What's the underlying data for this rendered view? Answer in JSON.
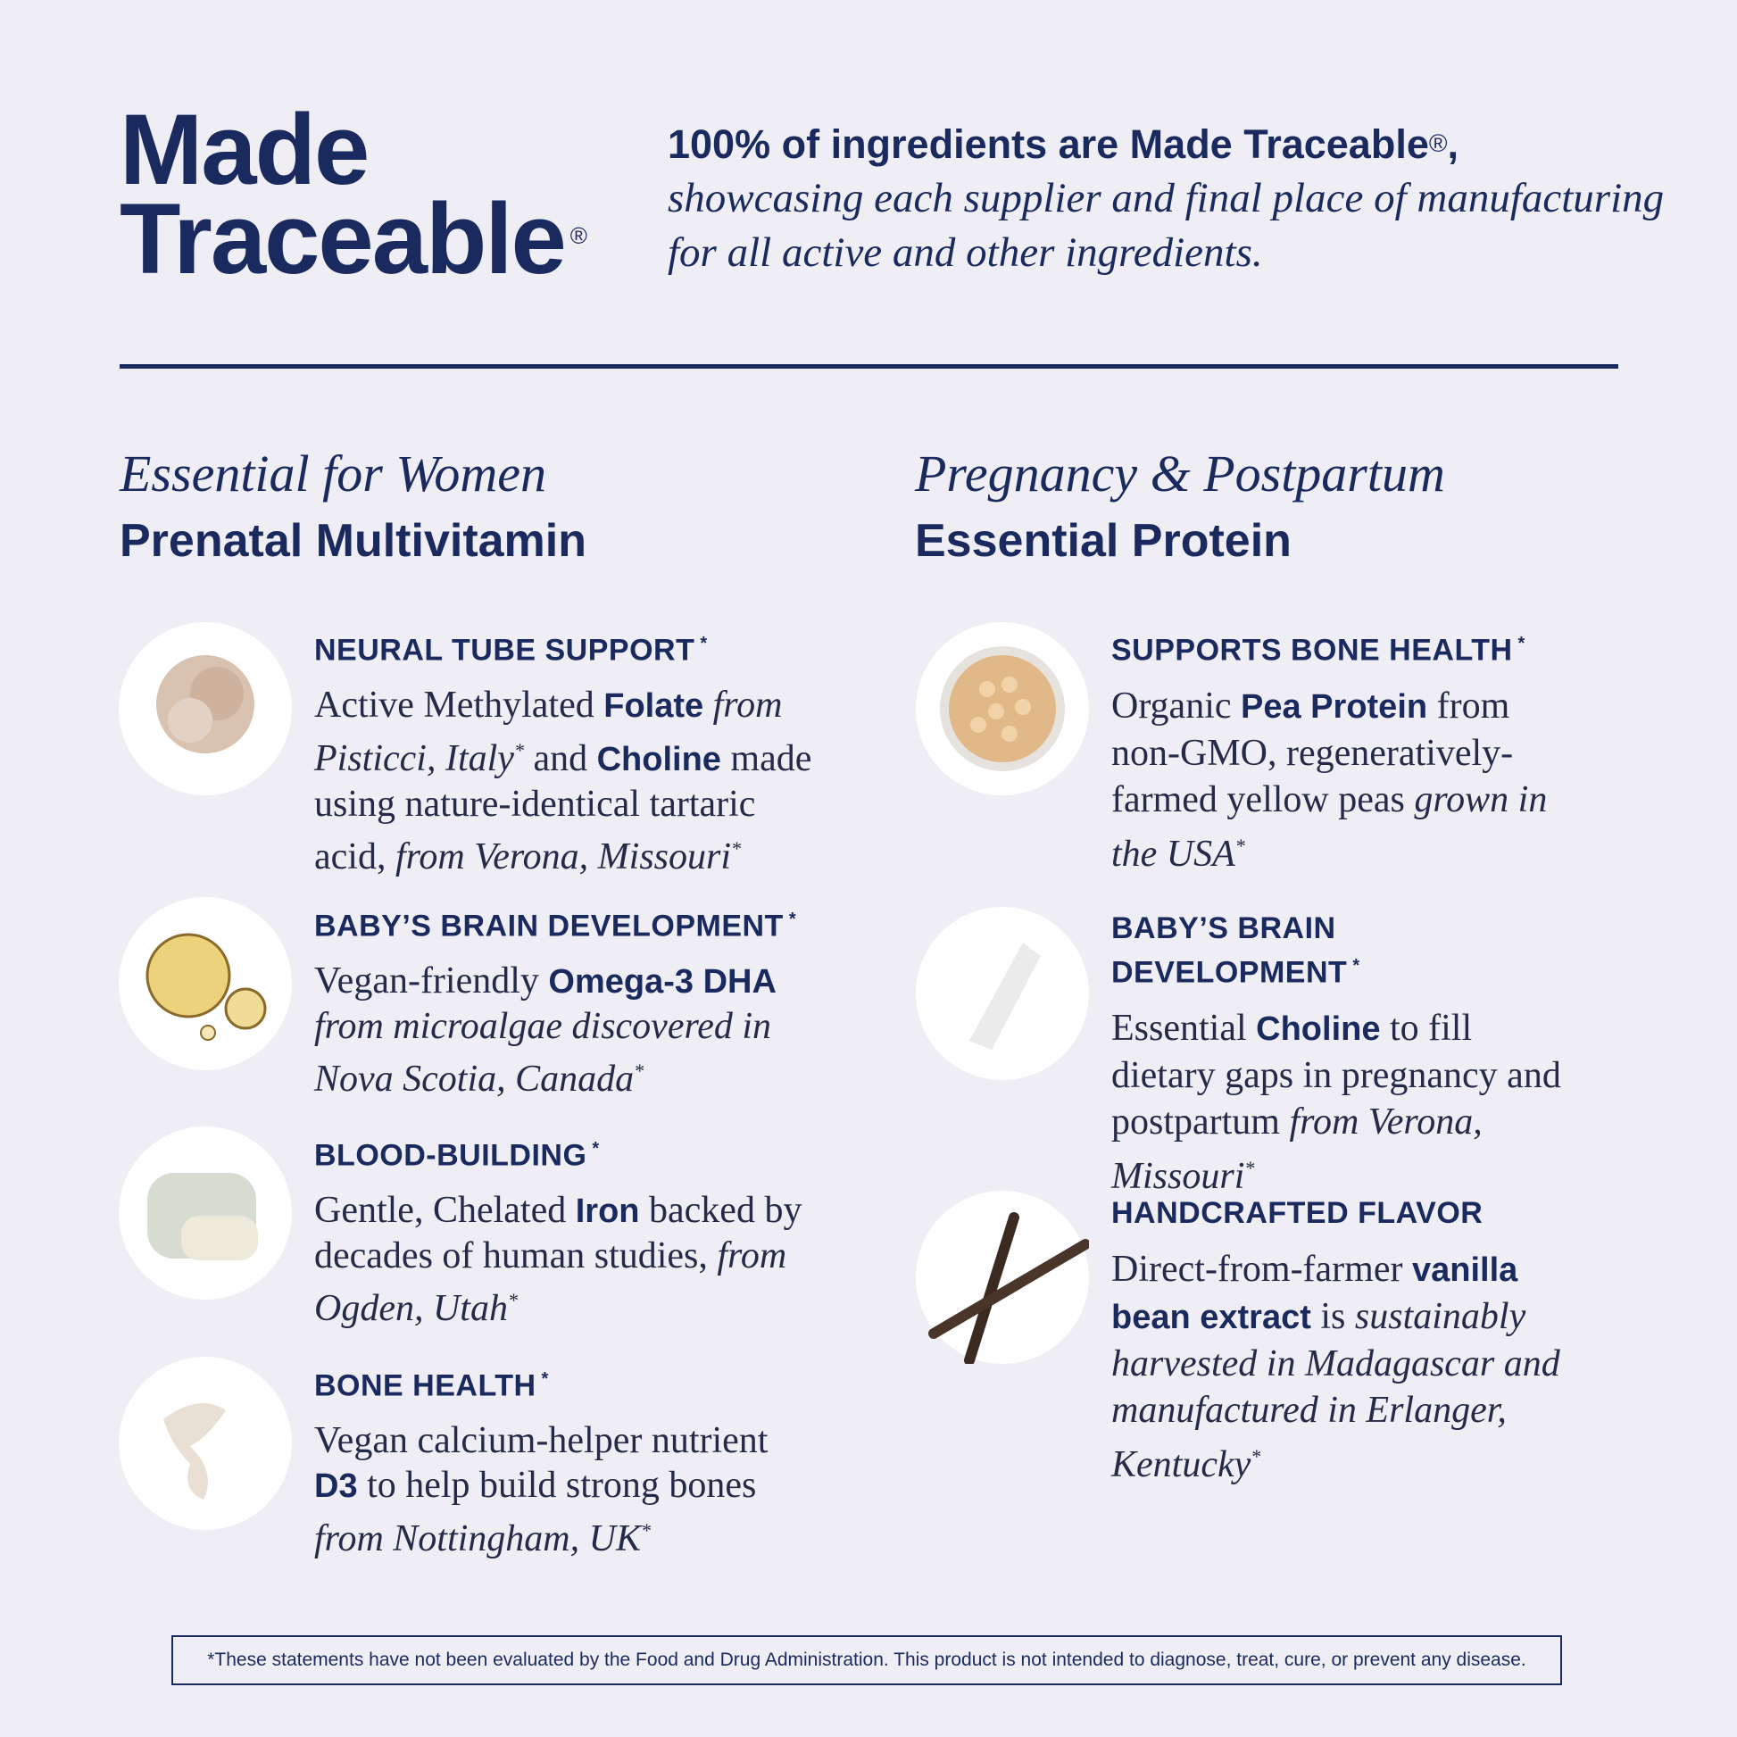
{
  "header": {
    "title_line1": "Made",
    "title_line2": "Traceable",
    "title_registered": "®",
    "tagline_bold": "100% of ingredients are Made Traceable",
    "tagline_registered": "®",
    "tagline_comma": ",",
    "tagline_italic": "showcasing each supplier and final place of manufacturing for all active and other ingredients."
  },
  "columns": [
    {
      "subtitle": "Essential for Women",
      "title": "Prenatal Multivitamin",
      "items": [
        {
          "heading": "NEURAL TUBE SUPPORT",
          "heading_mark": "*",
          "text": [
            "Active Methylated ",
            "Folate",
            " from Pisticci, Italy",
            "*",
            " and ",
            "Choline",
            " made using nature-identical tartaric acid, ",
            " from Verona, Missouri",
            "*"
          ]
        },
        {
          "heading": "BABY’S BRAIN DEVELOPMENT",
          "heading_mark": "*",
          "text": [
            "Vegan-friendly ",
            "Omega-3 DHA",
            " from microalgae discovered in Nova Scotia, Canada",
            "*"
          ]
        },
        {
          "heading": "BLOOD-BUILDING",
          "heading_mark": "*",
          "text": [
            "Gentle, Chelated ",
            "Iron",
            " backed by decades of human studies, ",
            "from Ogden, Utah",
            "*"
          ]
        },
        {
          "heading": "BONE HEALTH",
          "heading_mark": "*",
          "text": [
            "Vegan calcium-helper nutrient ",
            "D3",
            " to help build strong bones ",
            "from Nottingham, UK",
            "*"
          ]
        }
      ]
    },
    {
      "subtitle": "Pregnancy & Postpartum",
      "title": "Essential Protein",
      "items": [
        {
          "heading": "SUPPORTS BONE HEALTH",
          "heading_mark": "*",
          "text": [
            "Organic ",
            "Pea Protein",
            " from non-GMO, regeneratively-farmed yellow peas ",
            "grown in the USA",
            "*"
          ]
        },
        {
          "heading": "BABY’S BRAIN DEVELOPMENT",
          "heading_mark": "*",
          "text": [
            "Essential ",
            "Choline",
            " to fill dietary gaps in pregnancy and postpartum ",
            "from Verona, Missouri",
            "*"
          ]
        },
        {
          "heading": "HANDCRAFTED FLAVOR",
          "text": [
            "Direct-from-farmer ",
            "vanilla bean extract",
            " is ",
            "sustainably harvested in Madagascar and manufactured in Erlanger, Kentucky",
            "*"
          ]
        }
      ]
    }
  ],
  "footer": "*These statements have not been evaluated by the Food and Drug Administration. This product is not intended to diagnose, treat, cure, or prevent any disease."
}
